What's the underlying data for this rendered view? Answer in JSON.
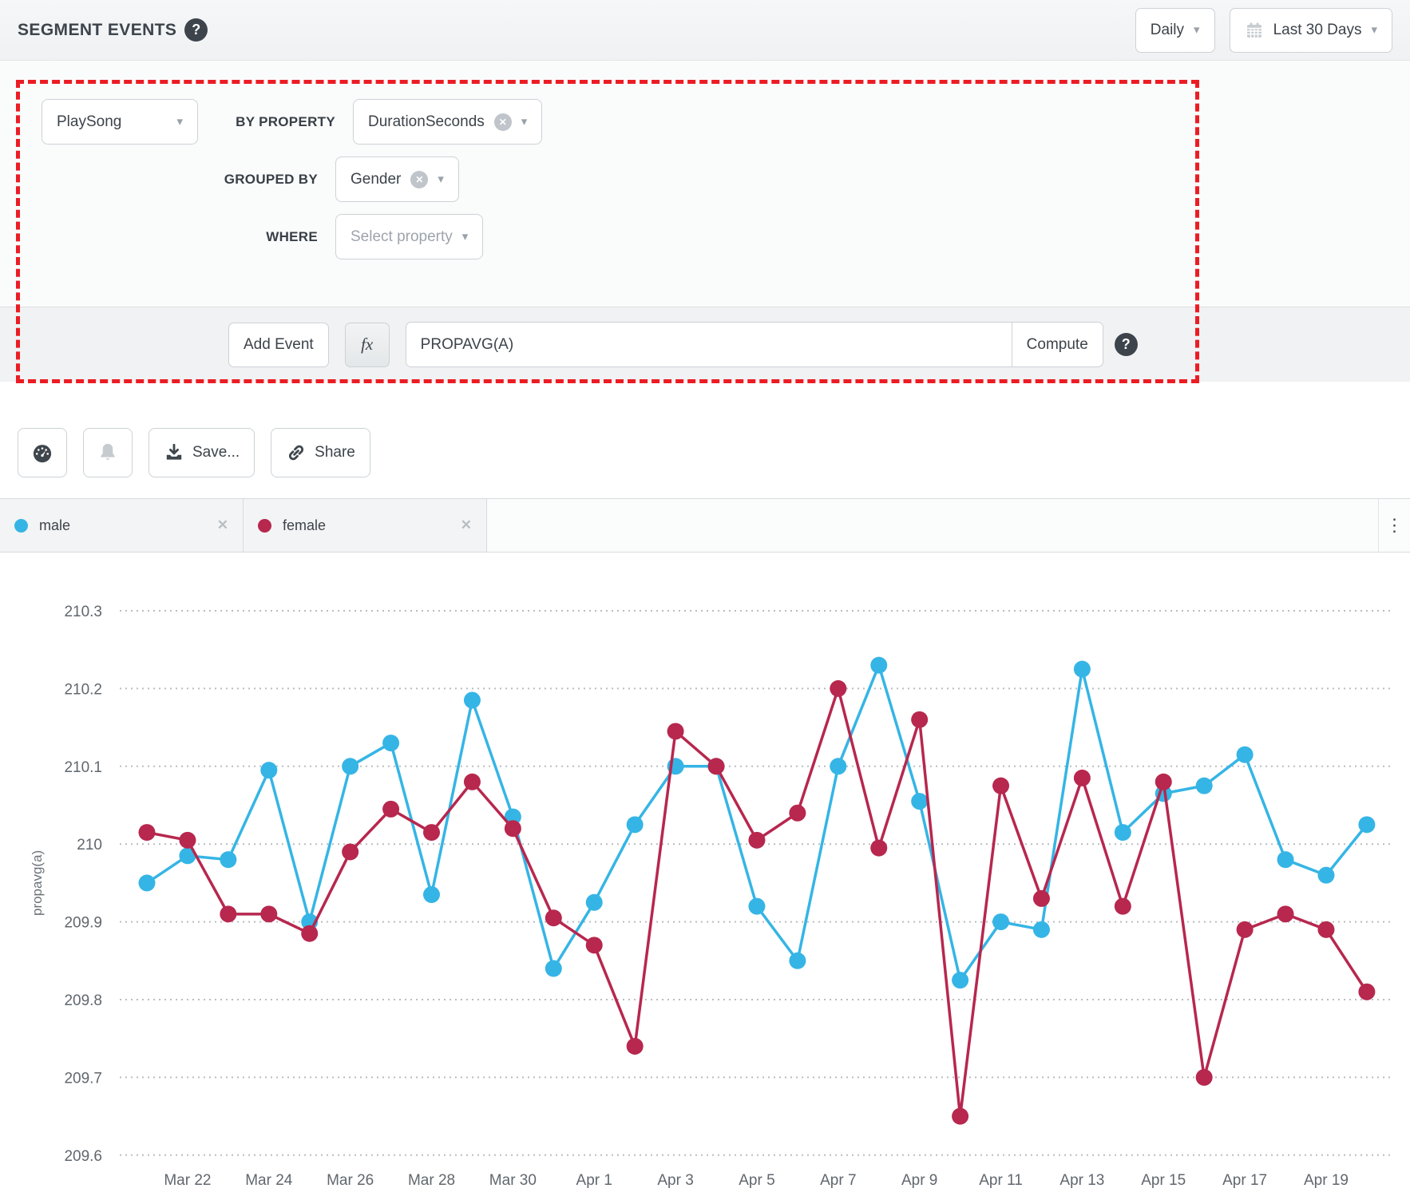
{
  "header": {
    "title": "SEGMENT EVENTS",
    "help_glyph": "?",
    "granularity_label": "Daily",
    "date_range_label": "Last 30 Days"
  },
  "query": {
    "event_value": "PlaySong",
    "by_property_label": "BY PROPERTY",
    "by_property_value": "DurationSeconds",
    "grouped_by_label": "GROUPED BY",
    "grouped_by_value": "Gender",
    "where_label": "WHERE",
    "where_placeholder": "Select property",
    "add_event_label": "Add Event",
    "fx_label": "fx",
    "formula_value": "PROPAVG(A)",
    "compute_label": "Compute",
    "help_glyph": "?"
  },
  "toolbar": {
    "save_label": "Save...",
    "share_label": "Share"
  },
  "icons": {
    "caret": "▾",
    "close": "✕",
    "remove": "✕",
    "menu": "⋮",
    "dashboard": "gauge-svg",
    "alert": "bell-svg",
    "save": "download-svg",
    "share": "link-svg",
    "date": "calendar-svg"
  },
  "legend": [
    {
      "name": "male",
      "color": "#35b5e5"
    },
    {
      "name": "female",
      "color": "#b7274e"
    }
  ],
  "chart_data": {
    "type": "line",
    "title": "",
    "xlabel": "",
    "ylabel": "propavg(a)",
    "ylim": [
      209.6,
      210.3
    ],
    "grid": "dotted-horizontal",
    "legend_position": "top-tabs",
    "y_ticks": [
      "210.3",
      "210.2",
      "210.1",
      "210",
      "209.9",
      "209.8",
      "209.7",
      "209.6"
    ],
    "x": [
      "Mar 21",
      "Mar 22",
      "Mar 23",
      "Mar 24",
      "Mar 25",
      "Mar 26",
      "Mar 27",
      "Mar 28",
      "Mar 29",
      "Mar 30",
      "Mar 31",
      "Apr 1",
      "Apr 2",
      "Apr 3",
      "Apr 4",
      "Apr 5",
      "Apr 6",
      "Apr 7",
      "Apr 8",
      "Apr 9",
      "Apr 10",
      "Apr 11",
      "Apr 12",
      "Apr 13",
      "Apr 14",
      "Apr 15",
      "Apr 16",
      "Apr 17",
      "Apr 18",
      "Apr 19",
      "Apr 20"
    ],
    "x_tick_labels": [
      "Mar 22",
      "Mar 24",
      "Mar 26",
      "Mar 28",
      "Mar 30",
      "Apr 1",
      "Apr 3",
      "Apr 5",
      "Apr 7",
      "Apr 9",
      "Apr 11",
      "Apr 13",
      "Apr 15",
      "Apr 17",
      "Apr 19"
    ],
    "series": [
      {
        "name": "male",
        "color": "#35b5e5",
        "values": [
          209.95,
          209.985,
          209.98,
          210.095,
          209.9,
          210.1,
          210.13,
          209.935,
          210.185,
          210.035,
          209.84,
          209.925,
          210.025,
          210.1,
          210.1,
          209.92,
          209.85,
          210.1,
          210.23,
          210.055,
          209.825,
          209.9,
          209.89,
          210.225,
          210.015,
          210.065,
          210.075,
          210.115,
          209.98,
          209.96,
          210.025
        ]
      },
      {
        "name": "female",
        "color": "#b7274e",
        "values": [
          210.015,
          210.005,
          209.91,
          209.91,
          209.885,
          209.99,
          210.045,
          210.015,
          210.08,
          210.02,
          209.905,
          209.87,
          209.74,
          210.145,
          210.1,
          210.005,
          210.04,
          210.2,
          209.995,
          210.16,
          209.65,
          210.075,
          209.93,
          210.085,
          209.92,
          210.08,
          209.7,
          209.89,
          209.91,
          209.89,
          209.81
        ]
      }
    ]
  }
}
